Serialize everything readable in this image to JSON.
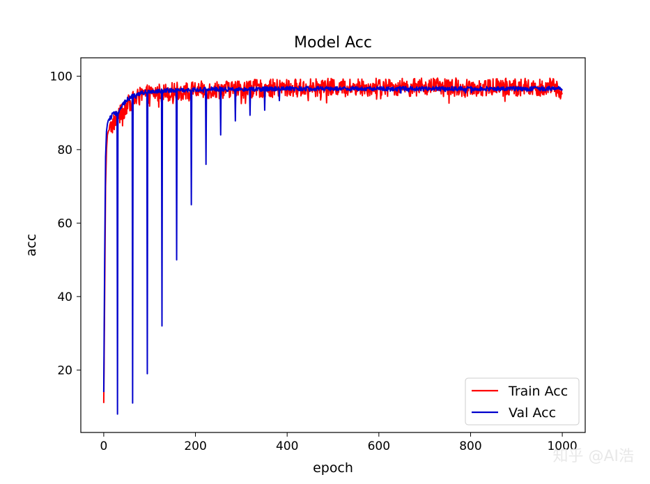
{
  "watermark": "知乎 @AI浩",
  "chart_data": {
    "type": "line",
    "title": "Model Acc",
    "xlabel": "epoch",
    "ylabel": "acc",
    "xlim": [
      -50,
      1050
    ],
    "ylim": [
      3,
      105
    ],
    "xticks": [
      0,
      200,
      400,
      600,
      800,
      1000
    ],
    "yticks": [
      20,
      40,
      60,
      80,
      100
    ],
    "xtick_labels": [
      "0",
      "200",
      "400",
      "600",
      "800",
      "1000"
    ],
    "ytick_labels": [
      "20",
      "40",
      "60",
      "80",
      "100"
    ],
    "grid": false,
    "legend": {
      "position": "lower-right",
      "entries": [
        {
          "name": "Train Acc",
          "color": "#ff0000"
        },
        {
          "name": "Val Acc",
          "color": "#0000cc"
        }
      ]
    },
    "series": [
      {
        "name": "Train Acc",
        "color": "#ff0000",
        "x": [
          0,
          2,
          4,
          6,
          8,
          10,
          15,
          20,
          25,
          30,
          40,
          50,
          60,
          70,
          80,
          90,
          100,
          120,
          140,
          160,
          180,
          200,
          220,
          240,
          260,
          280,
          300,
          320,
          340,
          360,
          380,
          400,
          420,
          440,
          460,
          480,
          500,
          520,
          540,
          560,
          580,
          600,
          620,
          640,
          660,
          680,
          700,
          720,
          740,
          760,
          780,
          800,
          820,
          840,
          860,
          880,
          900,
          920,
          940,
          960,
          980,
          1000
        ],
        "y": [
          11,
          40,
          70,
          80,
          84,
          85,
          86,
          87,
          88,
          89,
          90,
          92,
          93,
          94,
          94.5,
          95,
          95.2,
          95.5,
          95.7,
          95.9,
          96,
          96.1,
          96.2,
          96.3,
          96.4,
          96.5,
          96.5,
          96.6,
          96.6,
          96.7,
          96.7,
          96.8,
          96.8,
          96.8,
          96.9,
          96.9,
          96.9,
          96.9,
          97,
          97,
          97,
          97,
          97,
          97,
          97,
          96.9,
          97,
          97,
          97,
          97,
          97,
          97,
          97,
          97,
          97,
          97,
          97,
          97,
          97,
          97,
          97,
          96
        ],
        "noise_amplitude": 2.5
      },
      {
        "name": "Val Acc",
        "color": "#0000cc",
        "x": [
          0,
          2,
          4,
          6,
          8,
          10,
          15,
          20,
          25,
          29,
          30,
          31,
          35,
          40,
          50,
          60,
          62,
          63,
          64,
          70,
          80,
          90,
          94,
          95,
          96,
          100,
          110,
          120,
          126,
          127,
          128,
          135,
          150,
          158,
          159,
          160,
          170,
          180,
          190,
          191,
          192,
          200,
          210,
          222,
          223,
          224,
          240,
          254,
          255,
          256,
          270,
          286,
          287,
          288,
          300,
          318,
          319,
          320,
          340,
          350,
          351,
          352,
          380,
          382,
          383,
          384,
          400,
          450,
          500,
          550,
          600,
          650,
          700,
          750,
          800,
          850,
          900,
          950,
          1000
        ],
        "y": [
          14,
          50,
          78,
          85,
          87,
          88,
          89,
          89.5,
          90,
          90.3,
          8,
          89.5,
          91,
          92,
          93.5,
          94.3,
          94.5,
          11,
          94.5,
          95,
          95.3,
          95.6,
          95.7,
          19,
          95.8,
          95.9,
          96,
          96,
          96,
          32,
          96,
          96.1,
          96.2,
          96.2,
          50,
          96.3,
          96.3,
          96.3,
          96.3,
          65,
          96.3,
          96.4,
          96.4,
          96.4,
          76,
          96.4,
          96.5,
          96.5,
          84,
          96.5,
          96.5,
          96.5,
          88,
          96.5,
          96.5,
          96.5,
          89,
          96.5,
          96.5,
          96.5,
          91,
          96.5,
          96.5,
          96.5,
          93,
          96.5,
          96.6,
          96.6,
          96.6,
          96.6,
          96.6,
          96.6,
          96.6,
          96.6,
          96.6,
          96.6,
          96.6,
          96.6,
          96.6
        ],
        "noise_amplitude": 0.6
      }
    ]
  }
}
